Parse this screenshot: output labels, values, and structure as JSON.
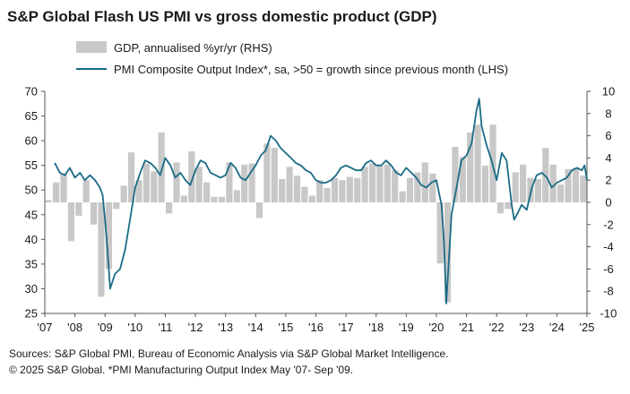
{
  "chart_data": {
    "type": "bar+line",
    "title": "S&P Global Flash US PMI vs gross domestic product (GDP)",
    "legend": [
      {
        "label": "GDP, annualised %yr/yr (RHS)",
        "color": "#c8c8c8",
        "kind": "bar"
      },
      {
        "label": "PMI Composite Output Index*, sa, >50 = growth since previous month (LHS)",
        "color": "#1b6b87",
        "kind": "line"
      }
    ],
    "legend_position": "top-left",
    "left_axis": {
      "min": 25,
      "max": 70,
      "ticks": [
        "70",
        "65",
        "60",
        "55",
        "50",
        "45",
        "40",
        "35",
        "30",
        "25"
      ]
    },
    "right_axis": {
      "min": -10,
      "max": 10,
      "ticks": [
        "10",
        "8",
        "6",
        "4",
        "2",
        "0",
        "-2",
        "-4",
        "-6",
        "-8",
        "-10"
      ]
    },
    "x_axis": {
      "start": 2007,
      "end": 2025,
      "ticks": [
        "'07",
        "'08",
        "'09",
        "'10",
        "'11",
        "'12",
        "'13",
        "'14",
        "'15",
        "'16",
        "'17",
        "'18",
        "'19",
        "'20",
        "'21",
        "'22",
        "'23",
        "'24",
        "'25"
      ]
    },
    "grid": false,
    "series": [
      {
        "name": "GDP, annualised %yr/yr (RHS)",
        "type": "bar",
        "axis": "right",
        "x": [
          2007.0,
          2007.25,
          2007.5,
          2007.75,
          2008.0,
          2008.25,
          2008.5,
          2008.75,
          2009.0,
          2009.25,
          2009.5,
          2009.75,
          2010.0,
          2010.25,
          2010.5,
          2010.75,
          2011.0,
          2011.25,
          2011.5,
          2011.75,
          2012.0,
          2012.25,
          2012.5,
          2012.75,
          2013.0,
          2013.25,
          2013.5,
          2013.75,
          2014.0,
          2014.25,
          2014.5,
          2014.75,
          2015.0,
          2015.25,
          2015.5,
          2015.75,
          2016.0,
          2016.25,
          2016.5,
          2016.75,
          2017.0,
          2017.25,
          2017.5,
          2017.75,
          2018.0,
          2018.25,
          2018.5,
          2018.75,
          2019.0,
          2019.25,
          2019.5,
          2019.75,
          2020.0,
          2020.25,
          2020.5,
          2020.75,
          2021.0,
          2021.25,
          2021.5,
          2021.75,
          2022.0,
          2022.25,
          2022.5,
          2022.75,
          2023.0,
          2023.25,
          2023.5,
          2023.75,
          2024.0,
          2024.25,
          2024.5,
          2024.75
        ],
        "values": [
          0.2,
          1.8,
          2.6,
          -3.5,
          -1.2,
          2.0,
          -2.0,
          -8.5,
          -6.0,
          -0.6,
          1.5,
          4.5,
          2.0,
          3.5,
          2.8,
          6.3,
          -1.0,
          3.6,
          0.6,
          4.6,
          3.2,
          1.8,
          0.5,
          0.5,
          3.6,
          1.1,
          3.4,
          3.5,
          -1.4,
          5.3,
          4.9,
          2.1,
          3.2,
          2.4,
          1.4,
          0.6,
          2.0,
          1.3,
          2.2,
          2.0,
          2.3,
          2.2,
          3.2,
          3.5,
          3.3,
          3.4,
          2.9,
          1.0,
          2.2,
          2.7,
          3.6,
          2.6,
          -5.5,
          -9.0,
          5.0,
          4.1,
          6.3,
          7.0,
          3.3,
          7.0,
          -1.0,
          -0.6,
          2.7,
          3.4,
          2.2,
          2.1,
          4.9,
          3.4,
          1.6,
          3.0,
          3.1,
          2.4
        ]
      },
      {
        "name": "PMI Composite Output Index*, sa, >50 = growth since previous month (LHS)",
        "type": "line",
        "axis": "left",
        "x": [
          2007.33,
          2007.5,
          2007.67,
          2007.83,
          2008.0,
          2008.17,
          2008.33,
          2008.5,
          2008.67,
          2008.83,
          2008.92,
          2009.0,
          2009.08,
          2009.17,
          2009.33,
          2009.5,
          2009.67,
          2009.83,
          2010.0,
          2010.17,
          2010.33,
          2010.5,
          2010.67,
          2010.83,
          2011.0,
          2011.17,
          2011.33,
          2011.5,
          2011.67,
          2011.83,
          2012.0,
          2012.17,
          2012.33,
          2012.5,
          2012.67,
          2012.83,
          2013.0,
          2013.17,
          2013.33,
          2013.5,
          2013.67,
          2013.83,
          2014.0,
          2014.17,
          2014.33,
          2014.5,
          2014.67,
          2014.83,
          2015.0,
          2015.17,
          2015.33,
          2015.5,
          2015.67,
          2015.83,
          2016.0,
          2016.17,
          2016.33,
          2016.5,
          2016.67,
          2016.83,
          2017.0,
          2017.17,
          2017.33,
          2017.5,
          2017.67,
          2017.83,
          2018.0,
          2018.17,
          2018.33,
          2018.5,
          2018.67,
          2018.83,
          2019.0,
          2019.17,
          2019.33,
          2019.5,
          2019.67,
          2019.83,
          2020.0,
          2020.17,
          2020.25,
          2020.33,
          2020.42,
          2020.5,
          2020.67,
          2020.83,
          2021.0,
          2021.17,
          2021.33,
          2021.42,
          2021.5,
          2021.67,
          2021.83,
          2022.0,
          2022.17,
          2022.33,
          2022.5,
          2022.58,
          2022.67,
          2022.83,
          2023.0,
          2023.17,
          2023.33,
          2023.5,
          2023.67,
          2023.83,
          2024.0,
          2024.17,
          2024.33,
          2024.5,
          2024.67,
          2024.83,
          2024.92,
          2025.0
        ],
        "values": [
          55.5,
          53.5,
          53.0,
          54.5,
          52.5,
          53.5,
          52.0,
          53.0,
          52.0,
          50.5,
          49.0,
          44.0,
          38.0,
          30.0,
          33.0,
          34.0,
          38.0,
          44.0,
          50.5,
          53.5,
          56.0,
          55.5,
          54.5,
          53.0,
          56.5,
          55.0,
          52.5,
          53.5,
          52.0,
          51.0,
          54.0,
          56.0,
          55.5,
          53.5,
          53.0,
          52.5,
          53.0,
          55.5,
          54.5,
          52.5,
          52.0,
          53.5,
          55.0,
          57.0,
          58.0,
          61.0,
          60.0,
          58.5,
          57.5,
          56.5,
          55.5,
          55.0,
          54.0,
          53.5,
          52.0,
          51.5,
          51.5,
          52.0,
          53.0,
          54.5,
          55.0,
          54.5,
          54.0,
          54.0,
          55.5,
          56.0,
          55.0,
          55.0,
          56.0,
          55.0,
          53.5,
          53.0,
          54.5,
          53.5,
          52.5,
          51.0,
          50.5,
          51.5,
          52.0,
          47.0,
          40.0,
          27.0,
          36.5,
          45.0,
          50.5,
          56.0,
          57.0,
          59.5,
          66.0,
          68.5,
          63.0,
          59.0,
          56.0,
          52.0,
          57.5,
          56.0,
          47.0,
          44.0,
          45.0,
          47.0,
          46.0,
          50.5,
          53.0,
          53.5,
          52.5,
          50.5,
          51.5,
          52.0,
          52.5,
          54.0,
          54.5,
          54.0,
          55.0,
          52.0
        ]
      }
    ]
  },
  "footnote": {
    "line1": "Sources: S&P Global PMI, Bureau of Economic Analysis via S&P Global Market Intelligence.",
    "line2": "© 2025 S&P Global.  *PMI Manufacturing Output Index May '07- Sep '09."
  }
}
